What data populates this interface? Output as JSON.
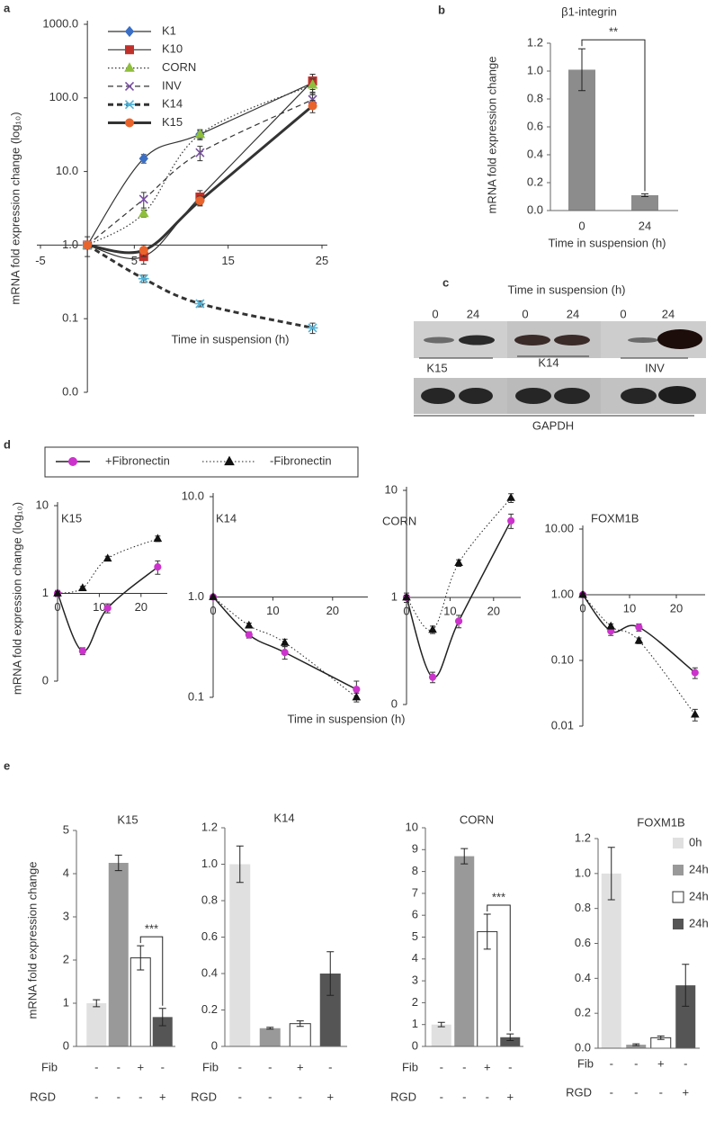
{
  "panels": [
    "a",
    "b",
    "c",
    "d",
    "e"
  ],
  "blot": {
    "title": "Time in suspension (h)",
    "lanes": [
      "0",
      "24",
      "0",
      "24",
      "0",
      "24"
    ],
    "proteins": [
      "K15",
      "K14",
      "INV"
    ],
    "control": "GAPDH"
  },
  "chart_data": [
    {
      "type": "line",
      "log": true,
      "x": [
        0,
        6,
        12,
        24
      ],
      "xlim": [
        -5,
        25
      ],
      "xticks": [
        -5,
        5,
        15,
        25
      ],
      "ylim": [
        0.01,
        1000
      ],
      "yticks": [
        {
          "value": 0.01,
          "label": "0.0"
        },
        0.1,
        {
          "value": 1,
          "label": "1.0"
        },
        {
          "value": 10,
          "label": "10.0"
        },
        {
          "value": 100,
          "label": "100.0"
        },
        {
          "value": 1000,
          "label": "1000.0"
        }
      ],
      "ylabel": "mRNA fold expression change (log₁₀)",
      "xlabel": "Time in suspension (h)",
      "legend": "upper left",
      "line_color": "#333333",
      "series": [
        {
          "name": "K1",
          "color": "#3a6fc4",
          "marker": "diamond",
          "line_style": "solid",
          "line_width": 1.2,
          "values": [
            1,
            15,
            32,
            160
          ],
          "errors": [
            0,
            2,
            4,
            50
          ]
        },
        {
          "name": "K10",
          "color": "#c0302a",
          "marker": "square",
          "line_style": "solid",
          "line_width": 1.2,
          "values": [
            1,
            0.7,
            4.5,
            170
          ],
          "errors": [
            0,
            0.15,
            1,
            40
          ]
        },
        {
          "name": "CORN",
          "color": "#8fbe3c",
          "marker": "triangle",
          "line_style": "dotted",
          "line_width": 1.2,
          "values": [
            1,
            2.7,
            32,
            150
          ],
          "errors": [
            0,
            0.3,
            5,
            30
          ]
        },
        {
          "name": "INV",
          "color": "#7b4fa6",
          "marker": "x",
          "line_style": "dashed",
          "line_width": 1.2,
          "values": [
            1,
            4.2,
            18,
            95
          ],
          "errors": [
            0,
            1,
            4,
            20
          ]
        },
        {
          "name": "K14",
          "color": "#4fb3d9",
          "marker": "star",
          "line_style": "dashed",
          "line_width": 3,
          "values": [
            1,
            0.35,
            0.16,
            0.075
          ],
          "errors": [
            0,
            0.04,
            0.015,
            0.012
          ]
        },
        {
          "name": "K15",
          "color": "#e8642c",
          "marker": "circle",
          "line_style": "solid",
          "line_width": 3,
          "values": [
            1,
            0.85,
            4,
            78
          ],
          "errors": [
            0.3,
            0.15,
            0.6,
            15
          ]
        }
      ]
    },
    {
      "type": "bar",
      "title": "β1-integrin",
      "categories": [
        "0",
        "24"
      ],
      "values": [
        1.01,
        0.11
      ],
      "errors": [
        0.15,
        0.01
      ],
      "color": "#8c8c8c",
      "ylim": [
        0,
        1.2
      ],
      "yticks": [
        {
          "value": 0,
          "label": "0.0"
        },
        0.2,
        0.4,
        0.6,
        0.8,
        {
          "value": 1,
          "label": "1.0"
        },
        1.2
      ],
      "ylabel": "mRNA fold expression change",
      "xlabel": "Time in suspension (h)",
      "annotation": "**"
    },
    {
      "type": "line",
      "log": true,
      "title": "K15",
      "x": [
        0,
        6,
        12,
        24
      ],
      "xlim": [
        0,
        25
      ],
      "xticks": [
        0,
        10,
        20
      ],
      "ylim": [
        0.1,
        10
      ],
      "yticks": [
        {
          "value": 0.1,
          "label": "0"
        },
        1,
        10
      ],
      "ylabel": "mRNA fold expression change (log₁₀)",
      "line_color": "#222222",
      "series": [
        {
          "name": "+Fibronectin",
          "color": "#cc33cc",
          "marker": "circle",
          "line_style": "solid",
          "line_width": 1.5,
          "values": [
            1,
            0.22,
            0.68,
            2.0
          ],
          "errors": [
            0.08,
            0.02,
            0.08,
            0.35
          ]
        },
        {
          "name": "-Fibronectin",
          "color": "#111111",
          "marker": "triangle",
          "line_style": "dotted",
          "line_width": 1,
          "values": [
            1,
            1.15,
            2.5,
            4.2
          ],
          "errors": [
            0.05,
            0.05,
            0.15,
            0.3
          ]
        }
      ]
    },
    {
      "type": "line",
      "log": true,
      "title": "K14",
      "x": [
        0,
        6,
        12,
        24
      ],
      "xlim": [
        0,
        25
      ],
      "xticks": [
        0,
        10,
        20
      ],
      "ylim": [
        0.1,
        10
      ],
      "yticks": [
        0.1,
        {
          "value": 1,
          "label": "1.0"
        },
        {
          "value": 10,
          "label": "10.0"
        }
      ],
      "xlabel": "Time in suspension (h)",
      "line_color": "#222222",
      "series": [
        {
          "color": "#cc33cc",
          "marker": "circle",
          "line_style": "solid",
          "line_width": 1.5,
          "values": [
            1,
            0.42,
            0.28,
            0.12
          ],
          "errors": [
            0.05,
            0.03,
            0.04,
            0.025
          ]
        },
        {
          "color": "#111111",
          "marker": "triangle",
          "line_style": "dotted",
          "line_width": 1,
          "values": [
            1,
            0.52,
            0.35,
            0.1
          ],
          "errors": [
            0.03,
            0.03,
            0.03,
            0.01
          ]
        }
      ]
    },
    {
      "type": "line",
      "log": true,
      "title": "CORN",
      "x": [
        0,
        6,
        12,
        24
      ],
      "xlim": [
        0,
        25
      ],
      "xticks": [
        0,
        10,
        20
      ],
      "ylim": [
        0.1,
        10
      ],
      "yticks": [
        {
          "value": 0.1,
          "label": "0"
        },
        1,
        10
      ],
      "line_color": "#222222",
      "series": [
        {
          "color": "#cc33cc",
          "marker": "circle",
          "line_style": "solid",
          "line_width": 1.5,
          "values": [
            1,
            0.18,
            0.6,
            5.2
          ],
          "errors": [
            0.1,
            0.02,
            0.08,
            0.8
          ]
        },
        {
          "color": "#111111",
          "marker": "triangle",
          "line_style": "dotted",
          "line_width": 1,
          "values": [
            1,
            0.5,
            2.1,
            8.5
          ],
          "errors": [
            0.05,
            0.04,
            0.15,
            0.8
          ]
        }
      ]
    },
    {
      "type": "line",
      "log": true,
      "title": "FOXM1B",
      "x": [
        0,
        6,
        12,
        24
      ],
      "xlim": [
        0,
        25
      ],
      "xticks": [
        0,
        10,
        20
      ],
      "ylim": [
        0.01,
        10
      ],
      "yticks": [
        0.01,
        {
          "value": 0.1,
          "label": "0.10"
        },
        {
          "value": 1,
          "label": "1.00"
        },
        {
          "value": 10,
          "label": "10.00"
        }
      ],
      "line_color": "#222222",
      "series": [
        {
          "color": "#cc33cc",
          "marker": "circle",
          "line_style": "solid",
          "line_width": 1.5,
          "values": [
            1,
            0.28,
            0.32,
            0.065
          ],
          "errors": [
            0.08,
            0.04,
            0.04,
            0.012
          ]
        },
        {
          "color": "#111111",
          "marker": "triangle",
          "line_style": "dotted",
          "line_width": 1,
          "values": [
            1,
            0.33,
            0.2,
            0.015
          ],
          "errors": [
            0.05,
            0.03,
            0.02,
            0.003
          ]
        }
      ]
    },
    {
      "type": "bar",
      "title": "K15",
      "values": [
        1.0,
        4.25,
        2.05,
        0.68
      ],
      "errors": [
        0.08,
        0.18,
        0.28,
        0.2
      ],
      "colors": [
        "#e0e0e0",
        "#999999",
        "#ffffff",
        "#555555"
      ],
      "ylim": [
        0,
        5
      ],
      "yticks": [
        0,
        1,
        2,
        3,
        4,
        5
      ],
      "ylabel": "mRNA fold expression change",
      "annotation": "***",
      "conditions": [
        {
          "label": "Fib",
          "values": [
            "-",
            "-",
            "+",
            "-"
          ]
        },
        {
          "label": "RGD",
          "values": [
            "-",
            "-",
            "-",
            "+"
          ]
        }
      ]
    },
    {
      "type": "bar",
      "title": "K14",
      "values": [
        1.0,
        0.1,
        0.125,
        0.4
      ],
      "errors": [
        0.1,
        0.005,
        0.015,
        0.12
      ],
      "colors": [
        "#e0e0e0",
        "#999999",
        "#ffffff",
        "#555555"
      ],
      "ylim": [
        0,
        1.2
      ],
      "yticks": [
        0,
        0.2,
        0.4,
        0.6,
        0.8,
        {
          "value": 1,
          "label": "1.0"
        },
        1.2
      ],
      "conditions": [
        {
          "label": "Fib",
          "values": [
            "-",
            "-",
            "+",
            "-"
          ]
        },
        {
          "label": "RGD",
          "values": [
            "-",
            "-",
            "-",
            "+"
          ]
        }
      ]
    },
    {
      "type": "bar",
      "title": "CORN",
      "values": [
        1.0,
        8.7,
        5.25,
        0.42
      ],
      "errors": [
        0.1,
        0.35,
        0.8,
        0.15
      ],
      "colors": [
        "#e0e0e0",
        "#999999",
        "#ffffff",
        "#555555"
      ],
      "ylim": [
        0,
        10
      ],
      "yticks": [
        0,
        1,
        2,
        3,
        4,
        5,
        6,
        7,
        8,
        9,
        10
      ],
      "annotation": "***",
      "conditions": [
        {
          "label": "Fib",
          "values": [
            "-",
            "-",
            "+",
            "-"
          ]
        },
        {
          "label": "RGD",
          "values": [
            "-",
            "-",
            "-",
            "+"
          ]
        }
      ]
    },
    {
      "type": "bar",
      "title": "FOXM1B",
      "values": [
        1.0,
        0.02,
        0.06,
        0.36
      ],
      "errors": [
        0.15,
        0.005,
        0.01,
        0.12
      ],
      "colors": [
        "#e0e0e0",
        "#999999",
        "#ffffff",
        "#555555"
      ],
      "ylim": [
        0,
        1.2
      ],
      "yticks": [
        {
          "value": 0,
          "label": "0.0"
        },
        0.2,
        0.4,
        0.6,
        0.8,
        {
          "value": 1,
          "label": "1.0"
        },
        1.2
      ],
      "legend": [
        "0h",
        "24h",
        "24h",
        "24h"
      ],
      "conditions": [
        {
          "label": "Fib",
          "values": [
            "-",
            "-",
            "+",
            "-"
          ]
        },
        {
          "label": "RGD",
          "values": [
            "-",
            "-",
            "-",
            "+"
          ]
        }
      ]
    }
  ]
}
